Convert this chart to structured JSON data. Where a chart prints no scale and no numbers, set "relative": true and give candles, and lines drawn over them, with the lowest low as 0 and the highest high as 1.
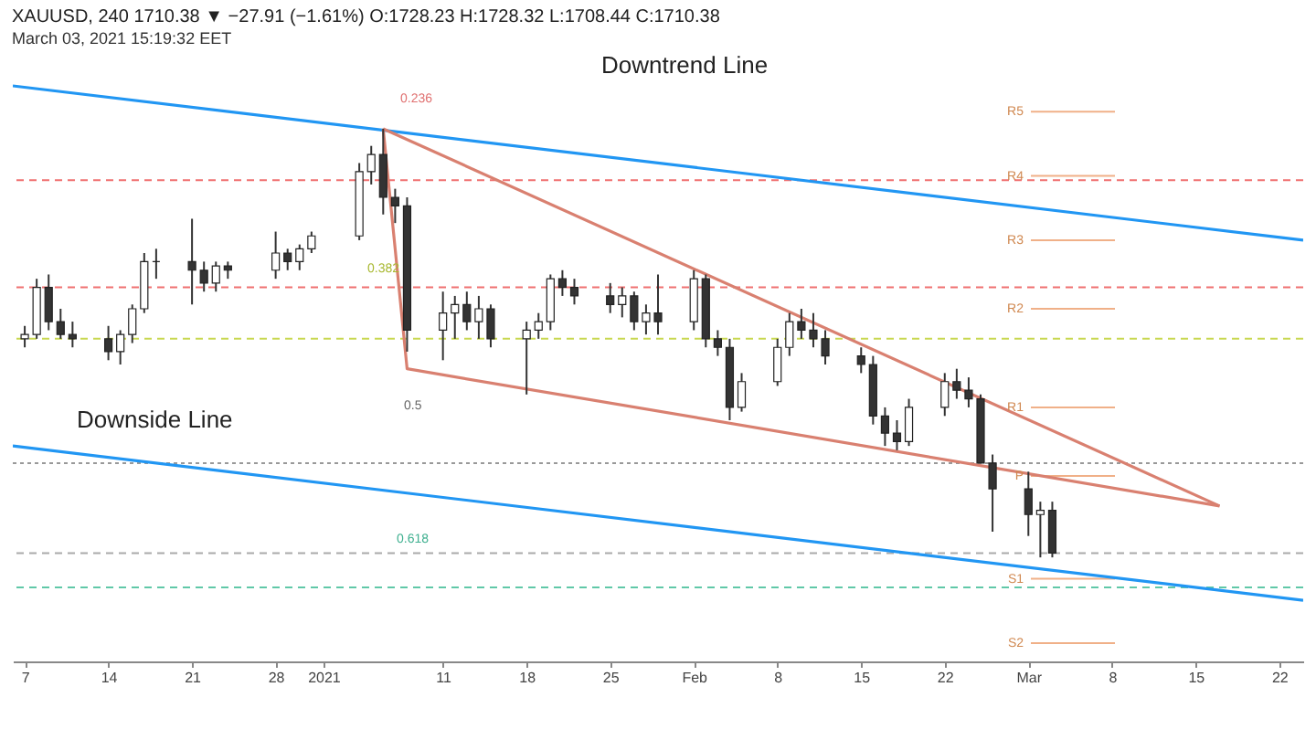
{
  "chart_data": {
    "type": "candlestick",
    "title": "XAUUSD, 240 1710.38 ▼ −27.91 (−1.61%) O:1728.23 H:1728.32 L:1708.44 C:1710.38",
    "subtitle": "March 03, 2021 15:19:32 EET",
    "relative": true,
    "tick_labels": "x",
    "x": [
      "2020-12-07",
      "2020-12-08",
      "2020-12-09",
      "2020-12-10",
      "2020-12-11",
      "2020-12-14",
      "2020-12-15",
      "2020-12-16",
      "2020-12-17",
      "2020-12-18",
      "2020-12-21",
      "2020-12-22",
      "2020-12-23",
      "2020-12-24",
      "2020-12-28",
      "2020-12-29",
      "2020-12-30",
      "2020-12-31",
      "2021-01-04",
      "2021-01-05",
      "2021-01-06",
      "2021-01-07",
      "2021-01-08",
      "2021-01-11",
      "2021-01-12",
      "2021-01-13",
      "2021-01-14",
      "2021-01-15",
      "2021-01-18",
      "2021-01-19",
      "2021-01-20",
      "2021-01-21",
      "2021-01-22",
      "2021-01-25",
      "2021-01-26",
      "2021-01-27",
      "2021-01-28",
      "2021-01-29",
      "2021-02-01",
      "2021-02-02",
      "2021-02-03",
      "2021-02-04",
      "2021-02-05",
      "2021-02-08",
      "2021-02-09",
      "2021-02-10",
      "2021-02-11",
      "2021-02-12",
      "2021-02-15",
      "2021-02-16",
      "2021-02-17",
      "2021-02-18",
      "2021-02-19",
      "2021-02-22",
      "2021-02-23",
      "2021-02-24",
      "2021-02-25",
      "2021-02-26",
      "2021-03-01",
      "2021-03-02",
      "2021-03-03"
    ],
    "ohlc": [
      [
        0.51,
        0.54,
        0.49,
        0.52
      ],
      [
        0.52,
        0.65,
        0.51,
        0.63
      ],
      [
        0.63,
        0.66,
        0.53,
        0.55
      ],
      [
        0.55,
        0.58,
        0.51,
        0.52
      ],
      [
        0.52,
        0.55,
        0.49,
        0.51
      ],
      [
        0.51,
        0.54,
        0.46,
        0.48
      ],
      [
        0.48,
        0.53,
        0.45,
        0.52
      ],
      [
        0.52,
        0.59,
        0.5,
        0.58
      ],
      [
        0.58,
        0.71,
        0.57,
        0.69
      ],
      [
        0.69,
        0.72,
        0.65,
        0.69
      ],
      [
        0.69,
        0.79,
        0.59,
        0.67
      ],
      [
        0.67,
        0.69,
        0.62,
        0.64
      ],
      [
        0.64,
        0.69,
        0.62,
        0.68
      ],
      [
        0.68,
        0.69,
        0.65,
        0.67
      ],
      [
        0.67,
        0.76,
        0.65,
        0.71
      ],
      [
        0.71,
        0.72,
        0.67,
        0.69
      ],
      [
        0.69,
        0.73,
        0.67,
        0.72
      ],
      [
        0.72,
        0.76,
        0.71,
        0.75
      ],
      [
        0.75,
        0.92,
        0.74,
        0.9
      ],
      [
        0.9,
        0.96,
        0.87,
        0.94
      ],
      [
        0.94,
        1,
        0.8,
        0.84
      ],
      [
        0.84,
        0.86,
        0.78,
        0.82
      ],
      [
        0.82,
        0.84,
        0.48,
        0.53
      ],
      [
        0.53,
        0.62,
        0.46,
        0.57
      ],
      [
        0.57,
        0.61,
        0.51,
        0.59
      ],
      [
        0.59,
        0.62,
        0.53,
        0.55
      ],
      [
        0.55,
        0.61,
        0.51,
        0.58
      ],
      [
        0.58,
        0.59,
        0.49,
        0.51
      ],
      [
        0.51,
        0.55,
        0.38,
        0.53
      ],
      [
        0.53,
        0.57,
        0.51,
        0.55
      ],
      [
        0.55,
        0.66,
        0.53,
        0.65
      ],
      [
        0.65,
        0.67,
        0.61,
        0.63
      ],
      [
        0.63,
        0.65,
        0.59,
        0.61
      ],
      [
        0.61,
        0.64,
        0.57,
        0.59
      ],
      [
        0.59,
        0.63,
        0.56,
        0.61
      ],
      [
        0.61,
        0.62,
        0.53,
        0.55
      ],
      [
        0.55,
        0.59,
        0.52,
        0.57
      ],
      [
        0.57,
        0.66,
        0.52,
        0.55
      ],
      [
        0.55,
        0.67,
        0.53,
        0.65
      ],
      [
        0.65,
        0.66,
        0.49,
        0.51
      ],
      [
        0.51,
        0.53,
        0.47,
        0.49
      ],
      [
        0.49,
        0.51,
        0.32,
        0.35
      ],
      [
        0.35,
        0.43,
        0.34,
        0.41
      ],
      [
        0.41,
        0.51,
        0.4,
        0.49
      ],
      [
        0.49,
        0.57,
        0.47,
        0.55
      ],
      [
        0.55,
        0.58,
        0.51,
        0.53
      ],
      [
        0.53,
        0.57,
        0.49,
        0.51
      ],
      [
        0.51,
        0.53,
        0.45,
        0.47
      ],
      [
        0.47,
        0.49,
        0.43,
        0.45
      ],
      [
        0.45,
        0.47,
        0.31,
        0.33
      ],
      [
        0.33,
        0.35,
        0.26,
        0.29
      ],
      [
        0.29,
        0.32,
        0.25,
        0.27
      ],
      [
        0.27,
        0.37,
        0.26,
        0.35
      ],
      [
        0.35,
        0.43,
        0.33,
        0.41
      ],
      [
        0.41,
        0.44,
        0.37,
        0.39
      ],
      [
        0.39,
        0.42,
        0.35,
        0.37
      ],
      [
        0.37,
        0.38,
        0.22,
        0.22
      ],
      [
        0.22,
        0.24,
        0.06,
        0.16
      ],
      [
        0.16,
        0.2,
        0.05,
        0.1
      ],
      [
        0.1,
        0.13,
        0,
        0.11
      ],
      [
        0.11,
        0.13,
        0,
        0.01
      ]
    ],
    "series": [
      {
        "type": "line",
        "color": "#2196f3",
        "x": [
          "2020-12-06",
          "2021-03-24"
        ],
        "values": [
          1.1,
          0.74
        ]
      },
      {
        "type": "line",
        "color": "#2196f3",
        "x": [
          "2020-12-06",
          "2021-03-24"
        ],
        "values": [
          0.26,
          -0.1
        ]
      },
      {
        "type": "line",
        "color": "#d98070",
        "x": [
          "2021-01-06",
          "2021-03-17"
        ],
        "values": [
          1,
          0.12
        ]
      },
      {
        "type": "line",
        "color": "#d98070",
        "x": [
          "2021-01-06",
          "2021-01-08",
          "2021-03-17"
        ],
        "values": [
          1,
          0.44,
          0.12
        ]
      }
    ],
    "ref_lines": [
      {
        "axis": "y",
        "value": 1.04,
        "label": "R5",
        "color": "#f0b088"
      },
      {
        "axis": "y",
        "value": 0.89,
        "label": "R4",
        "color": "#f0b088"
      },
      {
        "axis": "y",
        "value": 0.74,
        "label": "R3",
        "color": "#f0b088"
      },
      {
        "axis": "y",
        "value": 0.58,
        "label": "R2",
        "color": "#f0b088"
      },
      {
        "axis": "y",
        "value": 0.35,
        "label": "R1",
        "color": "#f0b088"
      },
      {
        "axis": "y",
        "value": 0.19,
        "label": "P",
        "color": "#f0b088"
      },
      {
        "axis": "y",
        "value": -0.05,
        "label": "S1",
        "color": "#f0b088"
      },
      {
        "axis": "y",
        "value": -0.2,
        "label": "S2",
        "color": "#f0b088"
      },
      {
        "axis": "y",
        "value": 0.88,
        "color": "#f07070",
        "line_style": "dashed"
      },
      {
        "axis": "y",
        "value": 0.63,
        "color": "#f07070",
        "line_style": "dashed"
      },
      {
        "axis": "y",
        "value": 0.51,
        "color": "#c8d850",
        "line_style": "dashed"
      },
      {
        "axis": "y",
        "value": 0.22,
        "color": "#999999",
        "line_style": "dotted"
      },
      {
        "axis": "y",
        "value": 0.01,
        "color": "#aaaaaa",
        "line_style": "dashed"
      },
      {
        "axis": "y",
        "value": -0.07,
        "color": "#60c8a8",
        "line_style": "dashed"
      }
    ],
    "annotations": [
      "Downtrend Line",
      "Downside Line",
      "0.236",
      "0.382",
      "0.5",
      "0.618"
    ],
    "xlim": [
      "2020-12-06",
      "2021-03-24"
    ],
    "xticks": [
      {
        "value": "2020-12-07",
        "label": "7"
      },
      {
        "value": "2020-12-14",
        "label": "14"
      },
      {
        "value": "2020-12-21",
        "label": "21"
      },
      {
        "value": "2020-12-28",
        "label": "28"
      },
      {
        "value": "2021-01-01",
        "label": "2021"
      },
      {
        "value": "2021-01-11",
        "label": "11"
      },
      {
        "value": "2021-01-18",
        "label": "18"
      },
      {
        "value": "2021-01-25",
        "label": "25"
      },
      {
        "value": "2021-02-01",
        "label": "Feb"
      },
      {
        "value": "2021-02-08",
        "label": "8"
      },
      {
        "value": "2021-02-15",
        "label": "15"
      },
      {
        "value": "2021-02-22",
        "label": "22"
      },
      {
        "value": "2021-03-01",
        "label": "Mar"
      },
      {
        "value": "2021-03-08",
        "label": "8"
      },
      {
        "value": "2021-03-15",
        "label": "15"
      },
      {
        "value": "2021-03-22",
        "label": "22"
      }
    ]
  }
}
